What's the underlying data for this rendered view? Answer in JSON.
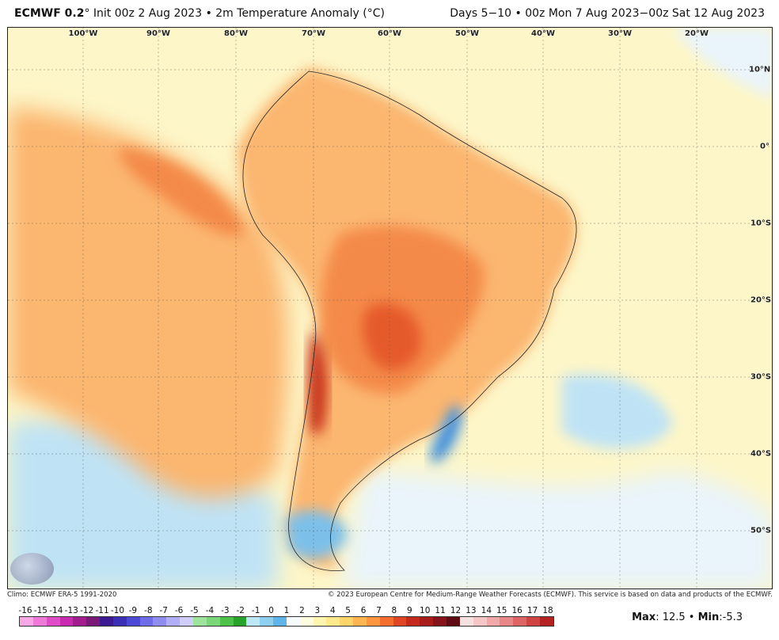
{
  "header": {
    "model": "ECMWF 0.2",
    "init": "° Init 00z 2 Aug 2023 • 2m Temperature Anomaly (°C)",
    "valid": "Days 5−10 • 00z Mon 7 Aug 2023−00z Sat 12 Aug 2023"
  },
  "map": {
    "lon_labels": [
      "100°W",
      "90°W",
      "80°W",
      "70°W",
      "60°W",
      "50°W",
      "40°W",
      "30°W",
      "20°W"
    ],
    "lat_labels": [
      "10°N",
      "0°",
      "10°S",
      "20°S",
      "30°S",
      "40°S",
      "50°S"
    ],
    "colors": {
      "ocean_background": "#fdf6c8",
      "warm_light": "#fde79a",
      "warm_mid": "#fbb66f",
      "warm_strong": "#f48a4a",
      "hot": "#e55a2b",
      "very_hot": "#c9361a",
      "cool_light": "#e9f4fb",
      "cool_mid": "#bfe3f5",
      "cold": "#7cc0ea",
      "very_cold": "#3f8fdd"
    }
  },
  "footer": {
    "climo": "Climo: ECMWF ERA-5 1991-2020",
    "copyright": "© 2023 European Centre for Medium-Range Weather Forecasts (ECMWF). This service is based on data and products of the ECMWF."
  },
  "scale": {
    "ticks": [
      "-16",
      "-15",
      "-14",
      "-13",
      "-12",
      "-11",
      "-10",
      "-9",
      "-8",
      "-7",
      "-6",
      "-5",
      "-4",
      "-3",
      "-2",
      "-1",
      "0",
      "1",
      "2",
      "3",
      "4",
      "5",
      "6",
      "7",
      "8",
      "9",
      "10",
      "11",
      "12",
      "13",
      "14",
      "15",
      "16",
      "17",
      "18"
    ],
    "colors": [
      "#f7a6e6",
      "#ef79d9",
      "#e04cc8",
      "#c82bb0",
      "#a21d8e",
      "#7a1a77",
      "#3b1a94",
      "#3a2fb6",
      "#4b49d6",
      "#6e6ce6",
      "#8f8cf0",
      "#b1aef7",
      "#d0cdfb",
      "#9ee39c",
      "#7bd679",
      "#4cc24a",
      "#27a22a",
      "#bde6f6",
      "#8fd0f1",
      "#5fb5e9",
      "#f7fbff",
      "#fffde0",
      "#fff5b0",
      "#ffe98a",
      "#ffd46a",
      "#ffb452",
      "#ff953f",
      "#f56d2f",
      "#e14624",
      "#c62a1d",
      "#a81c1a",
      "#86131a",
      "#5e0b12",
      "#f6e1e1",
      "#f4c6c6",
      "#f0a8a8",
      "#e88787",
      "#de6565",
      "#cf4343",
      "#b52222"
    ]
  },
  "stats": {
    "max_label": "Max",
    "max_value": ": 12.5 • ",
    "min_label": "Min",
    "min_value": ":-5.3"
  }
}
